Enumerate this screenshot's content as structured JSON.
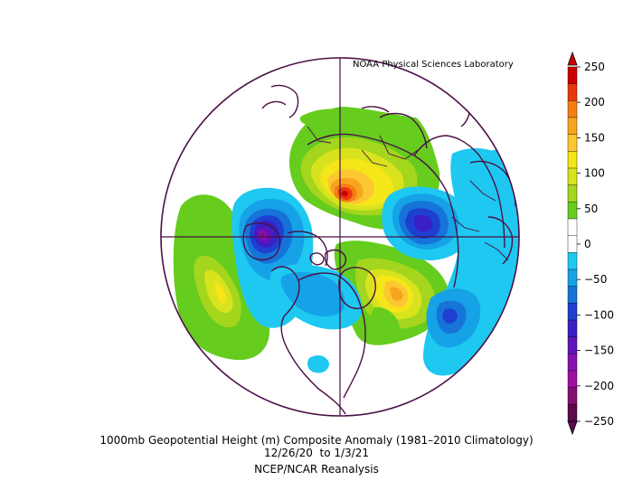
{
  "credit": "NOAA Physical Sciences Laboratory",
  "caption": {
    "line1": "1000mb Geopotential Height (m) Composite Anomaly (1981–2010 Climatology)",
    "line2": "12/26/20  to 1/3/21",
    "line3": "NCEP/NCAR Reanalysis"
  },
  "colorbar": {
    "labels": [
      "250",
      "200",
      "150",
      "100",
      "50",
      "0",
      "−50",
      "−100",
      "−150",
      "−200",
      "−250"
    ],
    "colors": [
      "#cc0000",
      "#e8380a",
      "#f47d14",
      "#f7a51f",
      "#fcc832",
      "#f5e61a",
      "#d8e31e",
      "#a3d61d",
      "#66cc1e",
      "#ffffff",
      "#ffffff",
      "#1ec8f0",
      "#16a2e6",
      "#1674d9",
      "#1e3fcf",
      "#3a1fc4",
      "#5f14b8",
      "#8512b0",
      "#9e0fa0",
      "#82106f",
      "#5a0a4d"
    ]
  },
  "colors": {
    "boundary": "#4a0f45",
    "ocean": "#ffffff"
  }
}
